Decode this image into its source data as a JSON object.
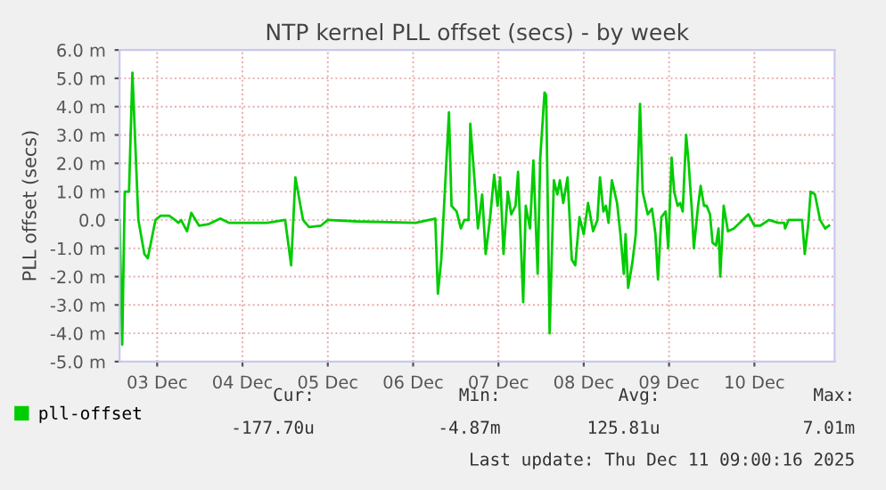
{
  "chart_data": {
    "type": "line",
    "title": "NTP kernel PLL offset (secs) - by week",
    "ylabel": "PLL offset (secs)",
    "series": [
      {
        "name": "pll-offset",
        "color": "#00cc00",
        "x": [
          "2025-12-03T01:26",
          "2025-12-03T02:10",
          "2025-12-03T02:53",
          "2025-12-03T04:05",
          "2025-12-03T05:02",
          "2025-12-03T06:43",
          "2025-12-03T08:24",
          "2025-12-03T09:22",
          "2025-12-03T11:31",
          "2025-12-03T12:58",
          "2025-12-03T15:22",
          "2025-12-03T17:02",
          "2025-12-03T18:00",
          "2025-12-03T18:43",
          "2025-12-03T20:24",
          "2025-12-03T21:36",
          "2025-12-03T23:46",
          "2025-12-04T02:24",
          "2025-12-04T05:46",
          "2025-12-04T08:10",
          "2025-12-04T18:58",
          "2025-12-05T00:00",
          "2025-12-05T01:41",
          "2025-12-05T02:53",
          "2025-12-05T05:02",
          "2025-12-05T06:43",
          "2025-12-05T10:05",
          "2025-12-05T12:00",
          "2025-12-05T20:10",
          "2025-12-06T12:43",
          "2025-12-06T18:14",
          "2025-12-06T18:58",
          "2025-12-06T19:55",
          "2025-12-06T22:05",
          "2025-12-06T22:48",
          "2025-12-07T00:14",
          "2025-12-07T01:26",
          "2025-12-07T02:24",
          "2025-12-07T03:36",
          "2025-12-07T04:05",
          "2025-12-07T05:31",
          "2025-12-07T06:14",
          "2025-12-07T07:26",
          "2025-12-07T08:24",
          "2025-12-07T09:36",
          "2025-12-07T10:48",
          "2025-12-07T11:46",
          "2025-12-07T12:29",
          "2025-12-07T13:26",
          "2025-12-07T14:38",
          "2025-12-07T15:36",
          "2025-12-07T16:48",
          "2025-12-07T17:31",
          "2025-12-07T18:58",
          "2025-12-07T19:41",
          "2025-12-07T20:53",
          "2025-12-07T21:50",
          "2025-12-07T23:02",
          "2025-12-07T23:46",
          "2025-12-08T00:58",
          "2025-12-08T01:26",
          "2025-12-08T02:24",
          "2025-12-08T03:36",
          "2025-12-08T04:34",
          "2025-12-08T05:17",
          "2025-12-08T06:14",
          "2025-12-08T07:26",
          "2025-12-08T08:38",
          "2025-12-08T09:36",
          "2025-12-08T10:48",
          "2025-12-08T12:00",
          "2025-12-08T13:12",
          "2025-12-08T14:38",
          "2025-12-08T15:50",
          "2025-12-08T16:34",
          "2025-12-08T17:31",
          "2025-12-08T18:14",
          "2025-12-08T18:58",
          "2025-12-08T19:55",
          "2025-12-08T21:22",
          "2025-12-08T22:19",
          "2025-12-08T23:17",
          "2025-12-08T23:46",
          "2025-12-09T00:29",
          "2025-12-09T01:41",
          "2025-12-09T02:38",
          "2025-12-09T03:50",
          "2025-12-09T04:34",
          "2025-12-09T06:00",
          "2025-12-09T07:12",
          "2025-12-09T08:10",
          "2025-12-09T08:53",
          "2025-12-09T09:50",
          "2025-12-09T11:02",
          "2025-12-09T11:46",
          "2025-12-09T12:43",
          "2025-12-09T13:26",
          "2025-12-09T14:24",
          "2025-12-09T15:07",
          "2025-12-09T15:50",
          "2025-12-09T16:48",
          "2025-12-09T17:31",
          "2025-12-09T18:29",
          "2025-12-09T18:58",
          "2025-12-09T20:10",
          "2025-12-09T20:53",
          "2025-12-09T21:50",
          "2025-12-09T22:34",
          "2025-12-09T23:31",
          "2025-12-10T00:14",
          "2025-12-10T01:12",
          "2025-12-10T01:55",
          "2025-12-10T02:24",
          "2025-12-10T03:22",
          "2025-12-10T04:34",
          "2025-12-10T06:14",
          "2025-12-10T07:55",
          "2025-12-10T10:19",
          "2025-12-10T12:00",
          "2025-12-10T13:41",
          "2025-12-10T16:05",
          "2025-12-10T18:43",
          "2025-12-10T20:24",
          "2025-12-10T20:38",
          "2025-12-10T21:36",
          "2025-12-11T01:26",
          "2025-12-11T02:10",
          "2025-12-11T03:07",
          "2025-12-11T03:50",
          "2025-12-11T05:02",
          "2025-12-11T06:29",
          "2025-12-11T07:55",
          "2025-12-11T09:00"
        ],
        "values": [
          0,
          -4.4,
          1.0,
          1.0,
          5.2,
          0,
          -1.2,
          -1.35,
          0,
          0.15,
          0.15,
          0,
          -0.1,
          0,
          -0.4,
          0.25,
          -0.2,
          -0.15,
          0.05,
          -0.1,
          -0.1,
          0,
          -1.6,
          1.5,
          0,
          -0.25,
          -0.2,
          0,
          -0.05,
          -0.1,
          0.05,
          -2.6,
          -1.4,
          3.8,
          0.5,
          0.3,
          -0.3,
          0,
          0,
          3.4,
          1.0,
          -0.3,
          0.9,
          -1.2,
          0,
          1.6,
          0.5,
          1.5,
          -1.2,
          1.0,
          0.2,
          0.5,
          1.7,
          -2.9,
          0.5,
          -0.3,
          2.1,
          -1.9,
          2.2,
          4.5,
          4.4,
          -4.0,
          1.4,
          0.9,
          1.4,
          0.6,
          1.5,
          -1.4,
          -1.6,
          0.1,
          -0.5,
          0.6,
          -0.4,
          0,
          1.5,
          0.3,
          0.5,
          -0.1,
          1.4,
          0.6,
          -0.5,
          -1.9,
          -0.5,
          -2.4,
          -1.5,
          -0.5,
          4.1,
          1.0,
          0.2,
          0.4,
          -0.5,
          -2.1,
          0.1,
          0.3,
          -1.0,
          2.2,
          1.0,
          0.5,
          0.6,
          0.3,
          3.0,
          2.0,
          0.2,
          -1.0,
          0.5,
          1.2,
          0.5,
          0.5,
          0.2,
          -0.8,
          -0.9,
          -0.3,
          -2.0,
          0.5,
          -0.4,
          -0.3,
          -0.1,
          0.2,
          -0.2,
          -0.2,
          0,
          -0.1,
          -0.1,
          -0.3,
          0,
          0,
          -1.2,
          -0.2,
          1.0,
          0.9,
          0,
          -0.3,
          -0.2
        ]
      }
    ],
    "xlim": [
      "2025-12-03T01:26",
      "2025-12-11T10:34"
    ],
    "xticks": [
      {
        "value": "2025-12-03T12:00",
        "label": "03 Dec"
      },
      {
        "value": "2025-12-04T12:00",
        "label": "04 Dec"
      },
      {
        "value": "2025-12-05T12:00",
        "label": "05 Dec"
      },
      {
        "value": "2025-12-06T12:00",
        "label": "06 Dec"
      },
      {
        "value": "2025-12-07T12:00",
        "label": "07 Dec"
      },
      {
        "value": "2025-12-08T12:00",
        "label": "08 Dec"
      },
      {
        "value": "2025-12-09T12:00",
        "label": "09 Dec"
      },
      {
        "value": "2025-12-10T12:00",
        "label": "10 Dec"
      }
    ],
    "ylim": [
      -5,
      6
    ],
    "yticks": [
      {
        "value": -5,
        "label": "-5.0 m"
      },
      {
        "value": -4,
        "label": "-4.0 m"
      },
      {
        "value": -3,
        "label": "-3.0 m"
      },
      {
        "value": -2,
        "label": "-2.0 m"
      },
      {
        "value": -1,
        "label": "-1.0 m"
      },
      {
        "value": 0,
        "label": "0.0"
      },
      {
        "value": 1,
        "label": "1.0 m"
      },
      {
        "value": 2,
        "label": "2.0 m"
      },
      {
        "value": 3,
        "label": "3.0 m"
      },
      {
        "value": 4,
        "label": "4.0 m"
      },
      {
        "value": 5,
        "label": "5.0 m"
      },
      {
        "value": 6,
        "label": "6.0 m"
      }
    ],
    "grid": true,
    "legend": "bottom left",
    "marker": "none",
    "line_style": "solid",
    "annotations": [
      "Cur:",
      "Min:",
      "Avg:",
      "Max:",
      "-177.70u",
      "-4.87m",
      "125.81u",
      "7.01m",
      "Last update: Thu Dec 11 09:00:16 2025"
    ]
  }
}
